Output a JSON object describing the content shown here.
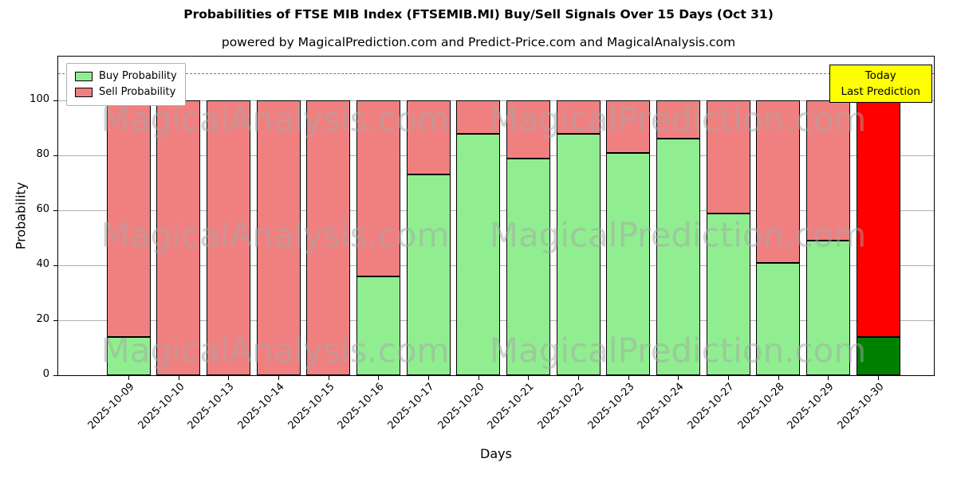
{
  "subtitle": "powered by MagicalPrediction.com and Predict-Price.com and MagicalAnalysis.com",
  "watermarks": [
    "MagicalAnalysis.com",
    "MagicalPrediction.com"
  ],
  "annotation": {
    "line1": "Today",
    "line2": "Last Prediction",
    "bg": "#ffff00"
  },
  "chart_data": {
    "type": "bar",
    "stacked": true,
    "title": "Probabilities of FTSE MIB Index (FTSEMIB.MI) Buy/Sell Signals Over 15 Days (Oct 31)",
    "xlabel": "Days",
    "ylabel": "Probability",
    "ylim": [
      0,
      116
    ],
    "yticks": [
      0,
      20,
      40,
      60,
      80,
      100
    ],
    "dashed_line_y": 110,
    "grid": true,
    "legend_position": "upper left",
    "categories": [
      "2025-10-09",
      "2025-10-10",
      "2025-10-13",
      "2025-10-14",
      "2025-10-15",
      "2025-10-16",
      "2025-10-17",
      "2025-10-20",
      "2025-10-21",
      "2025-10-22",
      "2025-10-23",
      "2025-10-24",
      "2025-10-27",
      "2025-10-28",
      "2025-10-29",
      "2025-10-30"
    ],
    "series": [
      {
        "name": "Buy Probability",
        "color": "#90ee90",
        "values": [
          14,
          0,
          0,
          0,
          0,
          36,
          73,
          88,
          79,
          88,
          81,
          86,
          59,
          41,
          49,
          14
        ]
      },
      {
        "name": "Sell Probability",
        "color": "#f08080",
        "values": [
          86,
          100,
          100,
          100,
          100,
          64,
          27,
          12,
          21,
          12,
          19,
          14,
          41,
          59,
          51,
          86
        ]
      }
    ],
    "today_colors": {
      "buy": "#008000",
      "sell": "#ff0000"
    }
  }
}
